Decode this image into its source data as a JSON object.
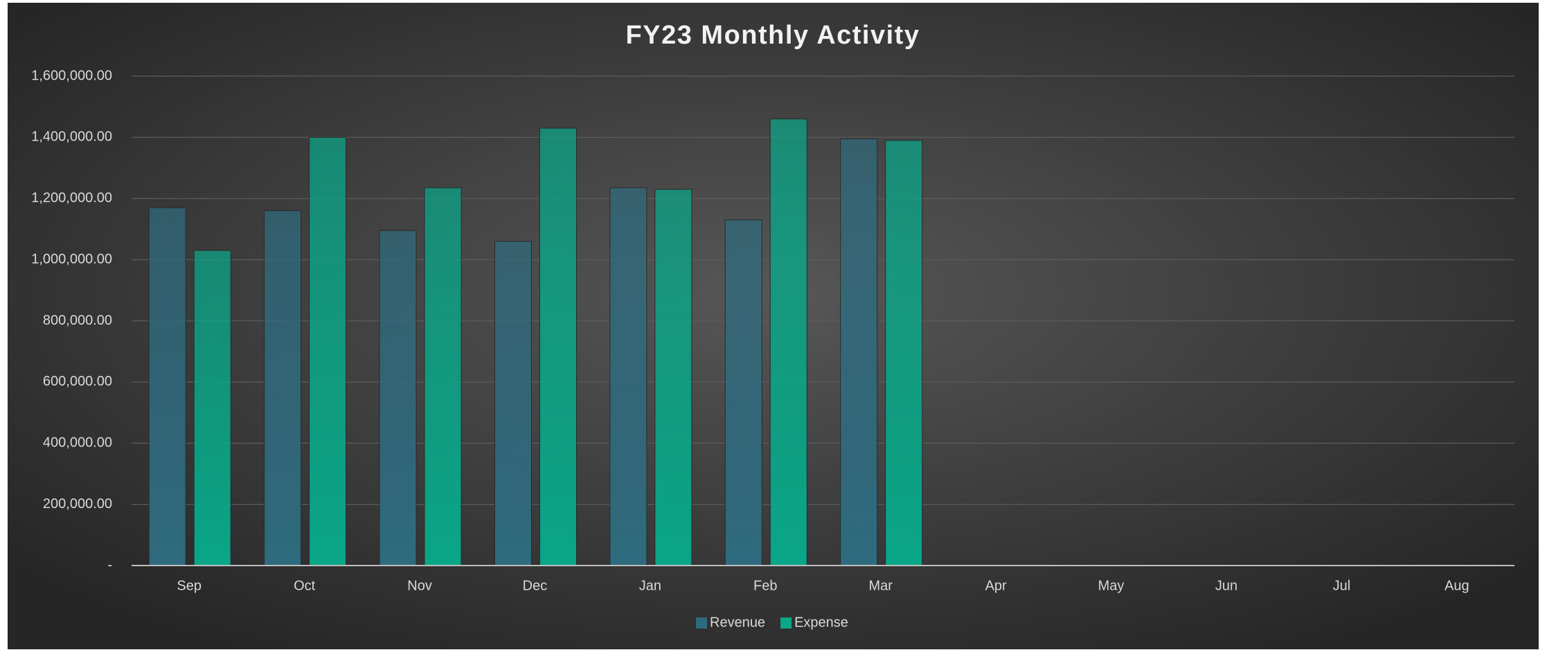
{
  "chart_data": {
    "type": "bar",
    "title": "FY23 Monthly Activity",
    "categories": [
      "Sep",
      "Oct",
      "Nov",
      "Dec",
      "Jan",
      "Feb",
      "Mar",
      "Apr",
      "May",
      "Jun",
      "Jul",
      "Aug"
    ],
    "series": [
      {
        "name": "Revenue",
        "color": "#2f6b7e",
        "values": [
          1170000,
          1160000,
          1095000,
          1060000,
          1235000,
          1130000,
          1395000,
          null,
          null,
          null,
          null,
          null
        ]
      },
      {
        "name": "Expense",
        "color": "#0aa688",
        "values": [
          1030000,
          1400000,
          1235000,
          1430000,
          1230000,
          1460000,
          1390000,
          null,
          null,
          null,
          null,
          null
        ]
      }
    ],
    "ylim": [
      0,
      1600000
    ],
    "yticks": [
      {
        "value": 0,
        "label": "-"
      },
      {
        "value": 200000,
        "label": "200,000.00"
      },
      {
        "value": 400000,
        "label": "400,000.00"
      },
      {
        "value": 600000,
        "label": "600,000.00"
      },
      {
        "value": 800000,
        "label": "800,000.00"
      },
      {
        "value": 1000000,
        "label": "1,000,000.00"
      },
      {
        "value": 1200000,
        "label": "1,200,000.00"
      },
      {
        "value": 1400000,
        "label": "1,400,000.00"
      },
      {
        "value": 1600000,
        "label": "1,600,000.00"
      }
    ],
    "grid": true,
    "legend": "bottom"
  }
}
